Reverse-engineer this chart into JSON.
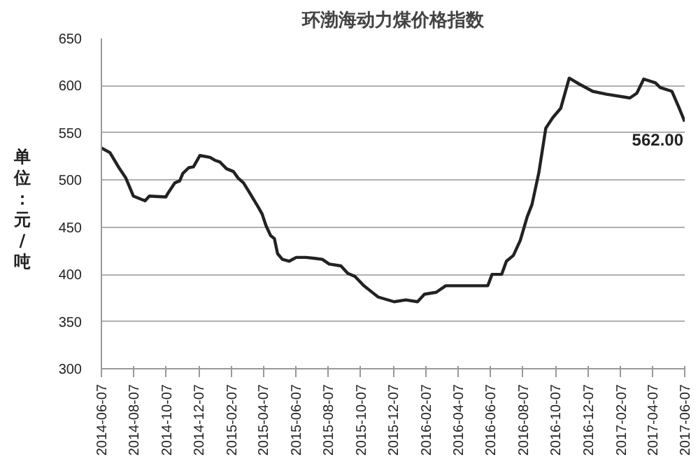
{
  "chart_data": {
    "type": "line",
    "title": "环渤海动力煤价格指数",
    "ylabel": "单位：元/吨",
    "x": [
      "2014-06-07",
      "2014-06-23",
      "2014-07-10",
      "2014-07-23",
      "2014-08-06",
      "2014-08-19",
      "2014-08-28",
      "2014-09-05",
      "2014-10-06",
      "2014-10-10",
      "2014-10-23",
      "2014-11-01",
      "2014-11-07",
      "2014-11-18",
      "2014-11-27",
      "2014-12-09",
      "2014-12-28",
      "2015-01-06",
      "2015-01-16",
      "2015-01-28",
      "2015-02-10",
      "2015-02-19",
      "2015-03-01",
      "2015-03-13",
      "2015-03-28",
      "2015-04-05",
      "2015-04-12",
      "2015-04-21",
      "2015-04-28",
      "2015-05-04",
      "2015-05-13",
      "2015-05-26",
      "2015-06-08",
      "2015-06-26",
      "2015-07-13",
      "2015-07-27",
      "2015-08-09",
      "2015-08-31",
      "2015-09-13",
      "2015-09-26",
      "2015-10-13",
      "2015-10-31",
      "2015-11-09",
      "2015-12-09",
      "2015-12-31",
      "2016-01-22",
      "2016-02-04",
      "2016-02-26",
      "2016-03-15",
      "2016-06-02",
      "2016-06-10",
      "2016-06-28",
      "2016-07-07",
      "2016-07-20",
      "2016-08-02",
      "2016-08-15",
      "2016-08-24",
      "2016-09-06",
      "2016-09-19",
      "2016-10-02",
      "2016-10-17",
      "2016-11-02",
      "2016-11-20",
      "2016-12-16",
      "2017-01-11",
      "2017-02-24",
      "2017-03-09",
      "2017-03-22",
      "2017-04-13",
      "2017-04-22",
      "2017-05-14",
      "2017-05-27",
      "2017-06-07"
    ],
    "series": [
      {
        "color": "#222222",
        "values": [
          534,
          529,
          513,
          502,
          483,
          480,
          478,
          483,
          482,
          486,
          497,
          499,
          507,
          513,
          514,
          526,
          524,
          521,
          519,
          512,
          509,
          502,
          497,
          486,
          472,
          464,
          452,
          441,
          438,
          422,
          416,
          414,
          418,
          418,
          417,
          416,
          411,
          409,
          401,
          398,
          388,
          380,
          376,
          371,
          373,
          371,
          379,
          381,
          388,
          388,
          400,
          400,
          414,
          420,
          436,
          461,
          474,
          508,
          555,
          566,
          576,
          608,
          602,
          594,
          591,
          587,
          592,
          607,
          603,
          598,
          594,
          577,
          562
        ]
      }
    ],
    "xlim": [
      "2014-06-07",
      "2017-06-07"
    ],
    "xticks": [
      {
        "value": "2014-06-07",
        "label": "2014-06-07"
      },
      {
        "value": "2014-08-07",
        "label": "2014-08-07"
      },
      {
        "value": "2014-10-07",
        "label": "2014-10-07"
      },
      {
        "value": "2014-12-07",
        "label": "2014-12-07"
      },
      {
        "value": "2015-02-07",
        "label": "2015-02-07"
      },
      {
        "value": "2015-04-07",
        "label": "2015-04-07"
      },
      {
        "value": "2015-06-07",
        "label": "2015-06-07"
      },
      {
        "value": "2015-08-07",
        "label": "2015-08-07"
      },
      {
        "value": "2015-10-07",
        "label": "2015-10-07"
      },
      {
        "value": "2015-12-07",
        "label": "2015-12-07"
      },
      {
        "value": "2016-02-07",
        "label": "2016-02-07"
      },
      {
        "value": "2016-04-07",
        "label": "2016-04-07"
      },
      {
        "value": "2016-06-07",
        "label": "2016-06-07"
      },
      {
        "value": "2016-08-07",
        "label": "2016-08-07"
      },
      {
        "value": "2016-10-07",
        "label": "2016-10-07"
      },
      {
        "value": "2016-12-07",
        "label": "2016-12-07"
      },
      {
        "value": "2017-02-07",
        "label": "2017-02-07"
      },
      {
        "value": "2017-04-07",
        "label": "2017-04-07"
      },
      {
        "value": "2017-06-07",
        "label": "2017-06-07"
      }
    ],
    "ylim": [
      300,
      650
    ],
    "yticks": [
      300,
      350,
      400,
      450,
      500,
      550,
      600,
      650
    ],
    "grid": "y",
    "marker": "none",
    "line_style": "solid",
    "annotations": [
      {
        "text": "562.00",
        "x": "2017-06-07",
        "y": 562
      }
    ]
  }
}
